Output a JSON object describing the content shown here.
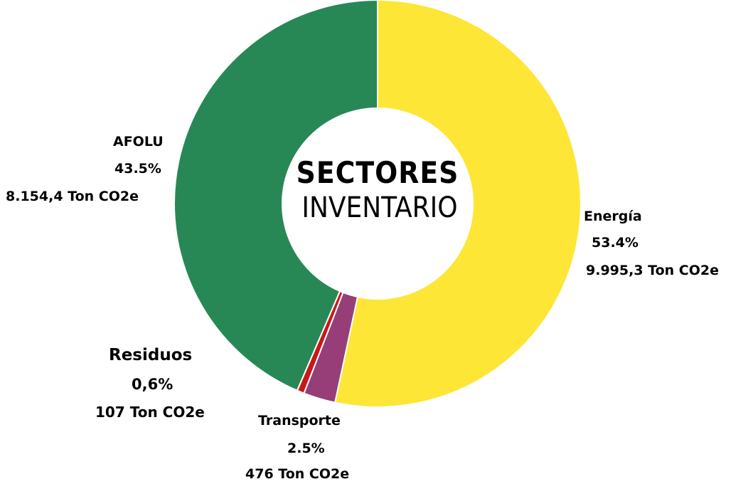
{
  "chart_data": {
    "type": "pie",
    "title": "SECTORES",
    "subtitle": "INVENTARIO",
    "slices": [
      {
        "name": "Energía",
        "percent": "53.4%",
        "value": 9995.3,
        "value_label": "9.995,3 Ton CO2e",
        "color": "#FDE636"
      },
      {
        "name": "Transporte",
        "percent": "2.5%",
        "value": 476,
        "value_label": "476 Ton CO2e",
        "color": "#973E79"
      },
      {
        "name": "Residuos",
        "percent": "0,6%",
        "value": 107,
        "value_label": "107 Ton CO2e",
        "color": "#C91818"
      },
      {
        "name": "AFOLU",
        "percent": "43.5%",
        "value": 8154.4,
        "value_label": "8.154,4 Ton CO2e",
        "color": "#278856"
      }
    ]
  }
}
